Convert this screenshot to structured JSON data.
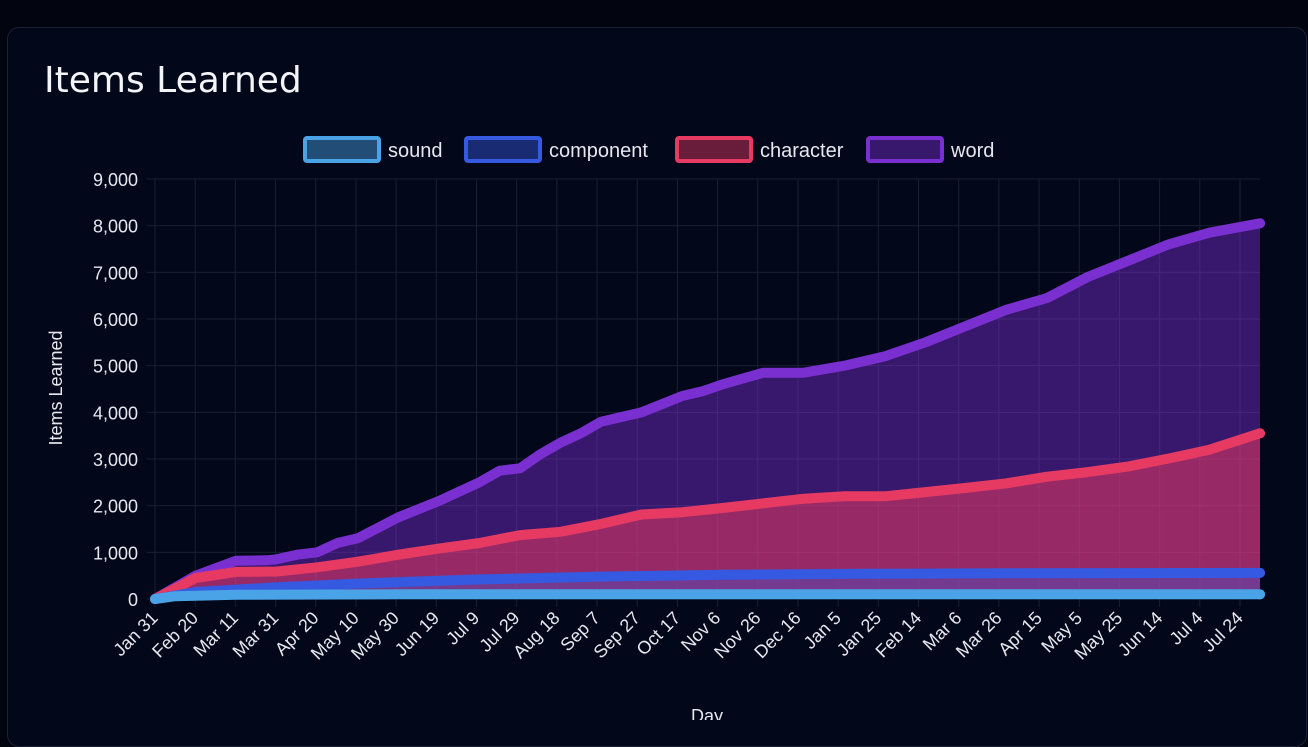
{
  "card": {
    "title": "Items Learned"
  },
  "colors": {
    "sound": "#4aa3e6",
    "component": "#3559e0",
    "character": "#e63a62",
    "word": "#7a2fd0",
    "grid": "#1a2033",
    "text": "#e6e8ee"
  },
  "chart_data": {
    "type": "area",
    "xlabel": "Day",
    "ylabel": "Items Learned",
    "ylim": [
      0,
      9000
    ],
    "y_ticks": [
      0,
      1000,
      2000,
      3000,
      4000,
      5000,
      6000,
      7000,
      8000,
      9000
    ],
    "y_tick_labels": [
      "0",
      "1,000",
      "2,000",
      "3,000",
      "4,000",
      "5,000",
      "6,000",
      "7,000",
      "8,000",
      "9,000"
    ],
    "x_tick_labels": [
      "Jan 31",
      "Feb 20",
      "Mar 11",
      "Mar 31",
      "Apr 20",
      "May 10",
      "May 30",
      "Jun 19",
      "Jul 9",
      "Jul 29",
      "Aug 18",
      "Sep 7",
      "Sep 27",
      "Oct 17",
      "Nov 6",
      "Nov 26",
      "Dec 16",
      "Jan 5",
      "Jan 25",
      "Feb 14",
      "Mar 6",
      "Mar 26",
      "Apr 15",
      "May 5",
      "May 25",
      "Jun 14",
      "Jul 4",
      "Jul 24"
    ],
    "x_day_range": [
      0,
      545
    ],
    "legend_position": "top",
    "grid": true,
    "series": [
      {
        "name": "sound",
        "key": "sound",
        "points": [
          [
            0,
            0
          ],
          [
            10,
            60
          ],
          [
            40,
            90
          ],
          [
            120,
            100
          ],
          [
            545,
            100
          ]
        ]
      },
      {
        "name": "component",
        "key": "component",
        "points": [
          [
            0,
            0
          ],
          [
            20,
            150
          ],
          [
            60,
            250
          ],
          [
            100,
            330
          ],
          [
            160,
            420
          ],
          [
            220,
            480
          ],
          [
            280,
            520
          ],
          [
            350,
            540
          ],
          [
            420,
            550
          ],
          [
            545,
            560
          ]
        ]
      },
      {
        "name": "character",
        "key": "character",
        "points": [
          [
            0,
            0
          ],
          [
            20,
            450
          ],
          [
            40,
            580
          ],
          [
            60,
            590
          ],
          [
            80,
            680
          ],
          [
            100,
            800
          ],
          [
            120,
            950
          ],
          [
            140,
            1080
          ],
          [
            160,
            1200
          ],
          [
            180,
            1370
          ],
          [
            200,
            1440
          ],
          [
            220,
            1610
          ],
          [
            240,
            1810
          ],
          [
            260,
            1860
          ],
          [
            280,
            1950
          ],
          [
            300,
            2050
          ],
          [
            320,
            2150
          ],
          [
            340,
            2200
          ],
          [
            360,
            2200
          ],
          [
            380,
            2290
          ],
          [
            400,
            2380
          ],
          [
            420,
            2480
          ],
          [
            440,
            2620
          ],
          [
            460,
            2720
          ],
          [
            480,
            2840
          ],
          [
            500,
            3010
          ],
          [
            520,
            3200
          ],
          [
            545,
            3550
          ]
        ]
      },
      {
        "name": "word",
        "key": "word",
        "points": [
          [
            0,
            0
          ],
          [
            20,
            500
          ],
          [
            40,
            820
          ],
          [
            55,
            830
          ],
          [
            60,
            850
          ],
          [
            70,
            950
          ],
          [
            80,
            1000
          ],
          [
            90,
            1200
          ],
          [
            100,
            1300
          ],
          [
            120,
            1750
          ],
          [
            140,
            2100
          ],
          [
            160,
            2500
          ],
          [
            170,
            2750
          ],
          [
            180,
            2800
          ],
          [
            190,
            3100
          ],
          [
            200,
            3350
          ],
          [
            210,
            3550
          ],
          [
            220,
            3800
          ],
          [
            230,
            3900
          ],
          [
            240,
            4000
          ],
          [
            260,
            4350
          ],
          [
            270,
            4450
          ],
          [
            280,
            4600
          ],
          [
            300,
            4850
          ],
          [
            320,
            4850
          ],
          [
            340,
            5000
          ],
          [
            360,
            5200
          ],
          [
            380,
            5500
          ],
          [
            400,
            5850
          ],
          [
            420,
            6200
          ],
          [
            440,
            6450
          ],
          [
            460,
            6900
          ],
          [
            480,
            7250
          ],
          [
            500,
            7600
          ],
          [
            520,
            7850
          ],
          [
            545,
            8050
          ]
        ]
      }
    ]
  }
}
